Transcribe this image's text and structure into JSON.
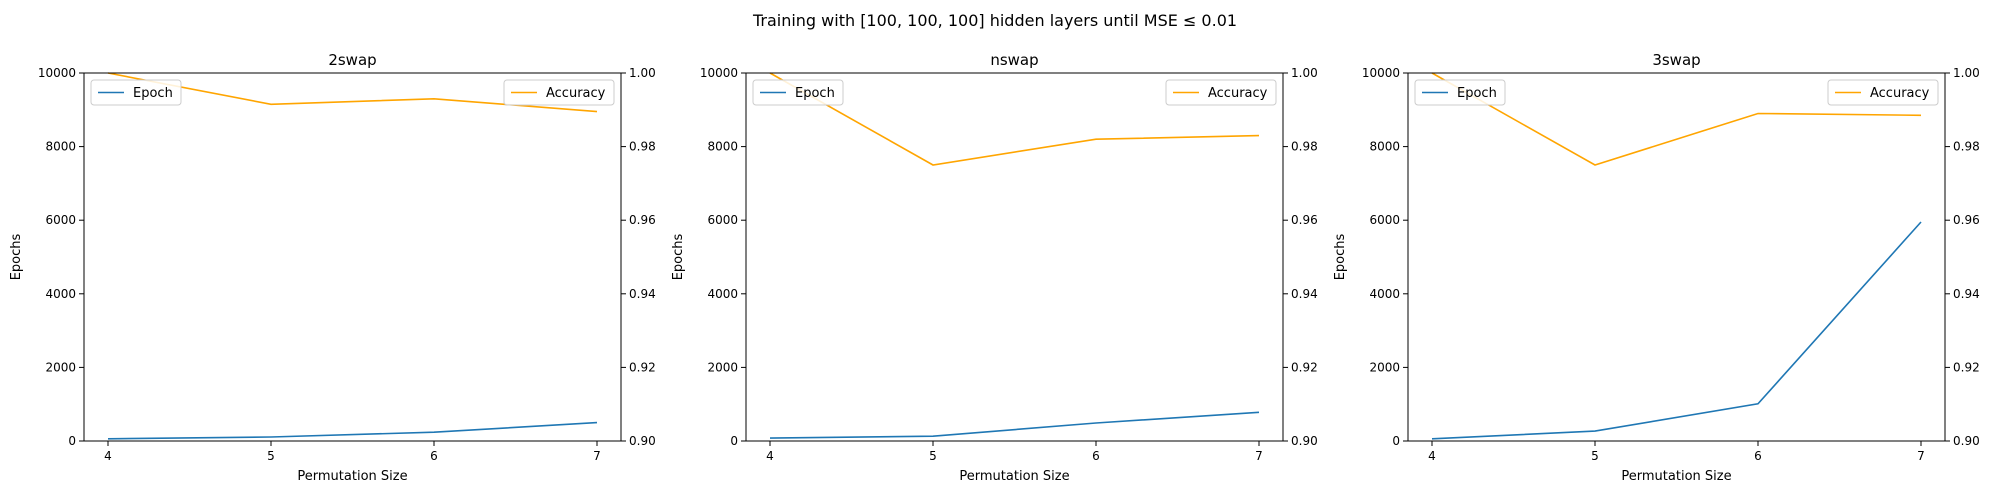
{
  "suptitle": "Training with [100, 100, 100] hidden layers until MSE $\\leq 0.01$",
  "suptitle_display": "Training with [100, 100, 100] hidden layers until MSE ≤ 0.01",
  "chart_data": [
    {
      "type": "line",
      "title": "2swap",
      "xlabel": "Permutation Size",
      "ylabel": "Epochs",
      "x": [
        4,
        5,
        6,
        7
      ],
      "xticks": [
        "4",
        "5",
        "6",
        "7"
      ],
      "ylim_left": [
        0,
        10000
      ],
      "yticks_left": [
        "0",
        "2000",
        "4000",
        "6000",
        "8000",
        "10000"
      ],
      "ylim_right": [
        0.9,
        1.0
      ],
      "yticks_right": [
        "0.90",
        "0.92",
        "0.94",
        "0.96",
        "0.98",
        "1.00"
      ],
      "series": [
        {
          "name": "Epoch",
          "axis": "left",
          "color": "#1f77b4",
          "values": [
            60,
            110,
            240,
            500
          ]
        },
        {
          "name": "Accuracy",
          "axis": "right",
          "color": "#ffa500",
          "values": [
            1.0,
            0.9915,
            0.993,
            0.9895
          ]
        }
      ],
      "legend_left": "upper left",
      "legend_right": "upper right",
      "grid": false
    },
    {
      "type": "line",
      "title": "nswap",
      "xlabel": "Permutation Size",
      "ylabel": "Epochs",
      "x": [
        4,
        5,
        6,
        7
      ],
      "xticks": [
        "4",
        "5",
        "6",
        "7"
      ],
      "ylim_left": [
        0,
        10000
      ],
      "yticks_left": [
        "0",
        "2000",
        "4000",
        "6000",
        "8000",
        "10000"
      ],
      "ylim_right": [
        0.9,
        1.0
      ],
      "yticks_right": [
        "0.90",
        "0.92",
        "0.94",
        "0.96",
        "0.98",
        "1.00"
      ],
      "series": [
        {
          "name": "Epoch",
          "axis": "left",
          "color": "#1f77b4",
          "values": [
            80,
            130,
            490,
            780
          ]
        },
        {
          "name": "Accuracy",
          "axis": "right",
          "color": "#ffa500",
          "values": [
            1.0,
            0.975,
            0.982,
            0.983
          ]
        }
      ],
      "legend_left": "upper left",
      "legend_right": "upper right",
      "grid": false
    },
    {
      "type": "line",
      "title": "3swap",
      "xlabel": "Permutation Size",
      "ylabel": "Epochs",
      "x": [
        4,
        5,
        6,
        7
      ],
      "xticks": [
        "4",
        "5",
        "6",
        "7"
      ],
      "ylim_left": [
        0,
        10000
      ],
      "yticks_left": [
        "0",
        "2000",
        "4000",
        "6000",
        "8000",
        "10000"
      ],
      "ylim_right": [
        0.9,
        1.0
      ],
      "yticks_right": [
        "0.90",
        "0.92",
        "0.94",
        "0.96",
        "0.98",
        "1.00"
      ],
      "series": [
        {
          "name": "Epoch",
          "axis": "left",
          "color": "#1f77b4",
          "values": [
            60,
            270,
            1010,
            5950
          ]
        },
        {
          "name": "Accuracy",
          "axis": "right",
          "color": "#ffa500",
          "values": [
            1.0,
            0.975,
            0.989,
            0.9885
          ]
        }
      ],
      "legend_left": "upper left",
      "legend_right": "upper right",
      "grid": false
    }
  ]
}
